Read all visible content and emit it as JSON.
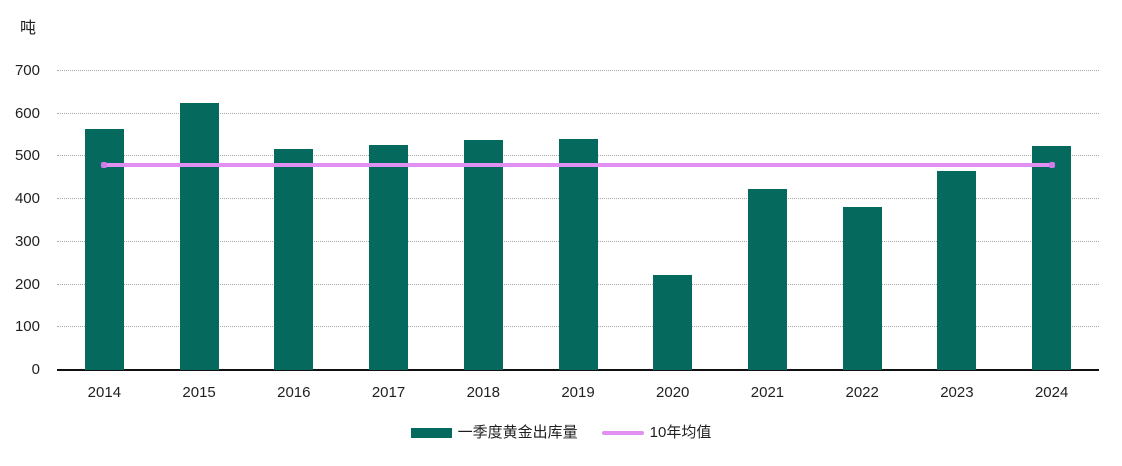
{
  "chart_data": {
    "type": "bar",
    "title": "",
    "ylabel": "吨",
    "xlabel": "",
    "categories": [
      "2014",
      "2015",
      "2016",
      "2017",
      "2018",
      "2019",
      "2020",
      "2021",
      "2022",
      "2023",
      "2024"
    ],
    "series": [
      {
        "name": "一季度黄金出库量",
        "type": "bar",
        "color": "#05695E",
        "values": [
          565,
          626,
          517,
          527,
          538,
          540,
          222,
          423,
          381,
          467,
          524
        ]
      },
      {
        "name": "10年均值",
        "type": "line",
        "color": "#E190F2",
        "value": 480
      }
    ],
    "ylim": [
      0,
      700
    ],
    "yticks": [
      0,
      100,
      200,
      300,
      400,
      500,
      600,
      700
    ],
    "grid": "horizontal-dotted",
    "legend_position": "bottom",
    "colors": {
      "axis": "#111111",
      "gridline": "#a8a8a8",
      "tick_text": "#1f1f1f",
      "background": "#ffffff",
      "line_endcap": "#cf7bea"
    }
  }
}
